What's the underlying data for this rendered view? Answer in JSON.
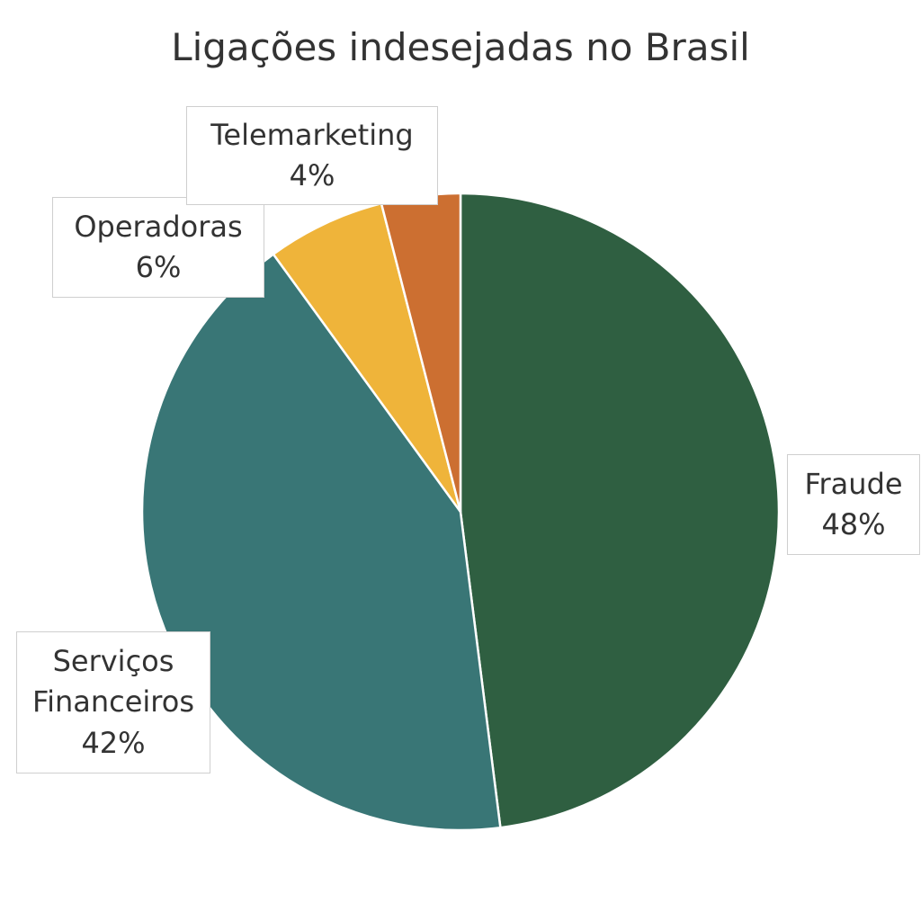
{
  "chart_data": {
    "type": "pie",
    "title": "Ligações indesejadas no Brasil",
    "slices": [
      {
        "name": "Fraude",
        "lines": [
          "Fraude"
        ],
        "value": 48,
        "value_label": "48%",
        "color": "#2f5f41"
      },
      {
        "name": "Serviços Financeiros",
        "lines": [
          "Serviços",
          "Financeiros"
        ],
        "value": 42,
        "value_label": "42%",
        "color": "#397676"
      },
      {
        "name": "Operadoras",
        "lines": [
          "Operadoras"
        ],
        "value": 6,
        "value_label": "6%",
        "color": "#efb43a"
      },
      {
        "name": "Telemarketing",
        "lines": [
          "Telemarketing"
        ],
        "value": 4,
        "value_label": "4%",
        "color": "#cc6f31"
      }
    ]
  }
}
